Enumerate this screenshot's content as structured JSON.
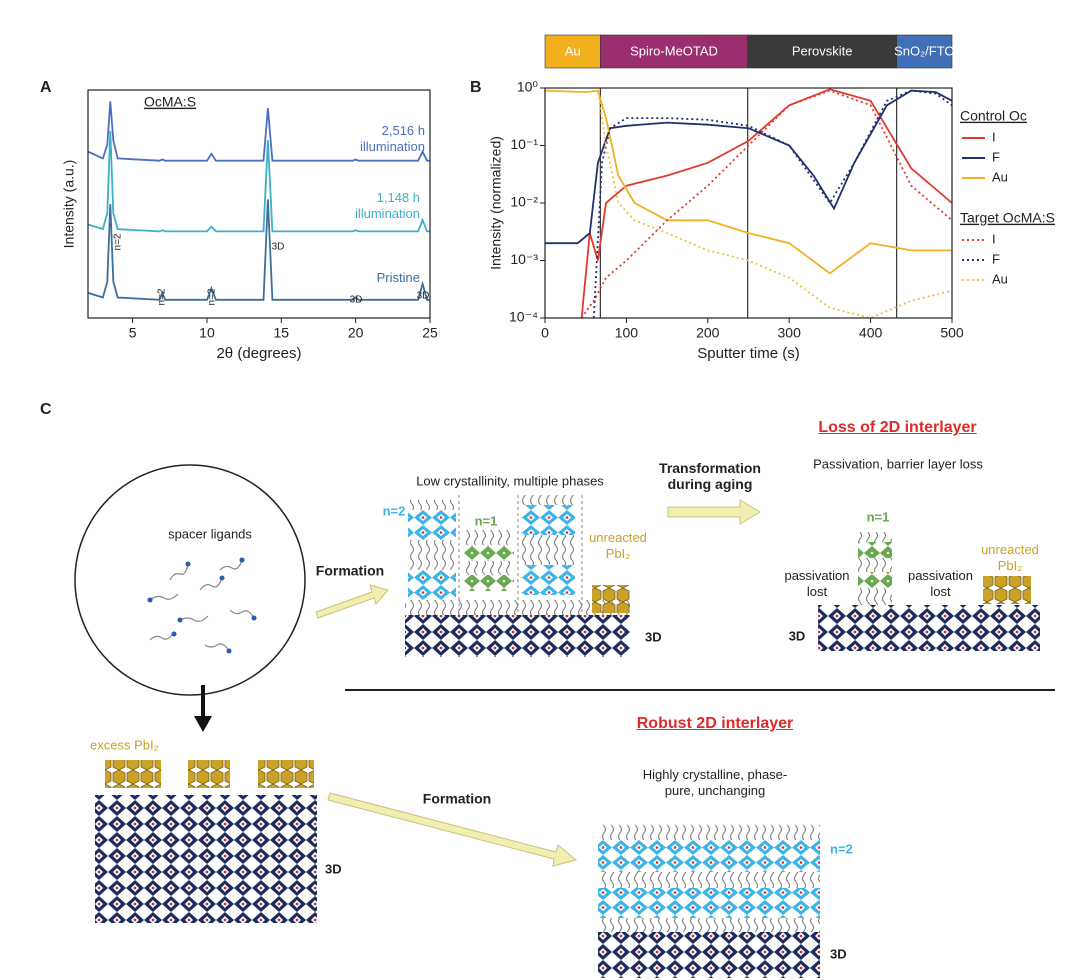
{
  "panel_labels": [
    "A",
    "B",
    "C"
  ],
  "chart_data": [
    {
      "type": "line",
      "xlabel": "2θ (degrees)",
      "ylabel": "Intensity (a.u.)",
      "xlim": [
        2,
        25
      ],
      "xticks": [
        5,
        10,
        15,
        20,
        25
      ],
      "ylim": [
        0,
        10
      ],
      "annotations": [
        "OcMA:S",
        "n=2",
        "n=2",
        "n=2",
        "3D",
        "3D",
        "3D"
      ],
      "x": [
        2,
        3,
        3.3,
        3.5,
        3.7,
        4,
        6.8,
        7,
        7.2,
        10,
        10.3,
        10.6,
        13.8,
        14.1,
        14.4,
        19.8,
        20,
        20.2,
        24.2,
        24.5,
        24.8,
        25
      ],
      "series": [
        {
          "name": "2,516 h illumination",
          "color": "#4a6fc2",
          "values": [
            7.3,
            7.0,
            7.6,
            9.5,
            7.8,
            7.0,
            6.9,
            6.95,
            6.9,
            6.9,
            7.2,
            6.9,
            6.9,
            9.2,
            6.9,
            6.9,
            6.95,
            6.9,
            6.9,
            7.3,
            6.9,
            6.9
          ]
        },
        {
          "name": "1,148 h illumination",
          "color": "#3bb0c9",
          "values": [
            4.1,
            3.9,
            4.6,
            8.2,
            4.6,
            3.9,
            3.8,
            3.85,
            3.8,
            3.8,
            4.0,
            3.8,
            3.8,
            7.8,
            3.8,
            3.8,
            3.85,
            3.8,
            3.8,
            4.3,
            3.8,
            3.8
          ]
        },
        {
          "name": "Pristine",
          "color": "#3d6f99",
          "values": [
            1.1,
            0.9,
            1.6,
            5.0,
            1.6,
            0.9,
            0.8,
            1.1,
            0.8,
            0.8,
            1.3,
            0.8,
            0.8,
            5.2,
            0.8,
            0.8,
            0.9,
            0.8,
            0.8,
            1.5,
            0.8,
            0.8
          ]
        }
      ]
    },
    {
      "type": "line",
      "log_y": true,
      "xlabel": "Sputter time (s)",
      "ylabel": "Intensity (normalized)",
      "xlim": [
        0,
        500
      ],
      "xticks": [
        0,
        100,
        200,
        300,
        400,
        500
      ],
      "ylim": [
        0.0001,
        1
      ],
      "yticks": [
        {
          "value": 1,
          "label": "10⁰"
        },
        {
          "value": 0.1,
          "label": "10⁻¹"
        },
        {
          "value": 0.01,
          "label": "10⁻²"
        },
        {
          "value": 0.001,
          "label": "10⁻³"
        },
        {
          "value": 0.0001,
          "label": "10⁻⁴"
        }
      ],
      "layers": [
        {
          "name": "Au",
          "start": 0,
          "end": 68,
          "color": "#f2b01e"
        },
        {
          "name": "Spiro-MeOTAD",
          "start": 68,
          "end": 249,
          "color": "#9b2f6d"
        },
        {
          "name": "Perovskite",
          "start": 249,
          "end": 432,
          "color": "#3a3a3a"
        },
        {
          "name": "SnO₂/FTO",
          "start": 432,
          "end": 500,
          "color": "#3f6fb7"
        }
      ],
      "legend_groups": [
        "Control Oc",
        "Target OcMA:S"
      ],
      "series": [
        {
          "name": "I",
          "group": 0,
          "color": "#e03a2f",
          "dashed": false,
          "x": [
            45,
            55,
            65,
            75,
            100,
            150,
            200,
            250,
            300,
            350,
            400,
            450,
            500
          ],
          "values": [
            0.0001,
            0.003,
            0.001,
            0.01,
            0.02,
            0.03,
            0.05,
            0.12,
            0.5,
            0.95,
            0.6,
            0.04,
            0.01
          ]
        },
        {
          "name": "F",
          "group": 0,
          "color": "#22306b",
          "dashed": false,
          "x": [
            0,
            40,
            55,
            65,
            80,
            100,
            150,
            200,
            250,
            300,
            330,
            355,
            380,
            420,
            450,
            480,
            500
          ],
          "values": [
            0.002,
            0.002,
            0.003,
            0.05,
            0.2,
            0.22,
            0.25,
            0.23,
            0.2,
            0.1,
            0.03,
            0.008,
            0.05,
            0.5,
            0.9,
            0.85,
            0.6
          ]
        },
        {
          "name": "Au",
          "group": 0,
          "color": "#f0b020",
          "dashed": false,
          "x": [
            0,
            50,
            65,
            75,
            90,
            110,
            150,
            200,
            250,
            300,
            350,
            400,
            450,
            500
          ],
          "values": [
            0.9,
            0.85,
            0.9,
            0.3,
            0.03,
            0.01,
            0.005,
            0.005,
            0.003,
            0.002,
            0.0006,
            0.002,
            0.0015,
            0.0015
          ]
        },
        {
          "name": "I",
          "group": 1,
          "color": "#e03a2f",
          "dashed": true,
          "x": [
            45,
            60,
            75,
            100,
            150,
            200,
            250,
            300,
            350,
            400,
            450,
            500
          ],
          "values": [
            0.0001,
            0.0002,
            0.0005,
            0.001,
            0.005,
            0.02,
            0.1,
            0.5,
            0.9,
            0.5,
            0.02,
            0.005
          ]
        },
        {
          "name": "F",
          "group": 1,
          "color": "#22306b",
          "dashed": true,
          "x": [
            60,
            70,
            80,
            100,
            150,
            200,
            250,
            300,
            350,
            380,
            420,
            450,
            480,
            500
          ],
          "values": [
            0.0001,
            0.05,
            0.2,
            0.3,
            0.3,
            0.28,
            0.22,
            0.1,
            0.01,
            0.05,
            0.6,
            0.9,
            0.8,
            0.5
          ]
        },
        {
          "name": "Au",
          "group": 1,
          "color": "#f0c040",
          "dashed": true,
          "x": [
            0,
            50,
            65,
            75,
            90,
            110,
            150,
            200,
            250,
            300,
            350,
            400,
            450,
            500
          ],
          "values": [
            0.9,
            0.85,
            0.9,
            0.1,
            0.01,
            0.005,
            0.003,
            0.0015,
            0.001,
            0.0005,
            0.00015,
            0.0001,
            0.0002,
            0.0003
          ]
        }
      ]
    }
  ],
  "diagram": {
    "spacer_ligands": "spacer ligands",
    "formation_top": "Formation",
    "low_crystallinity": "Low crystallinity, multiple phases",
    "mid_n2": "n=2",
    "mid_n1": "n=1",
    "mid_unreacted": "unreacted PbI₂",
    "mid_3d": "3D",
    "transformation": "Transformation during aging",
    "loss_title": "Loss of 2D interlayer",
    "loss_subtitle": "Passivation, barrier layer loss",
    "loss_n1": "n=1",
    "passivation_lost_left": "passivation lost",
    "passivation_lost_right": "passivation lost",
    "loss_unreacted": "unreacted PbI₂",
    "loss_3d": "3D",
    "excess": "excess PbI₂",
    "bottom_3d": "3D",
    "formation_bottom": "Formation",
    "robust_title": "Robust 2D interlayer",
    "robust_subtitle": "Highly crystalline, phase-pure, unchanging",
    "robust_n2": "n=2",
    "robust_3d": "3D"
  }
}
